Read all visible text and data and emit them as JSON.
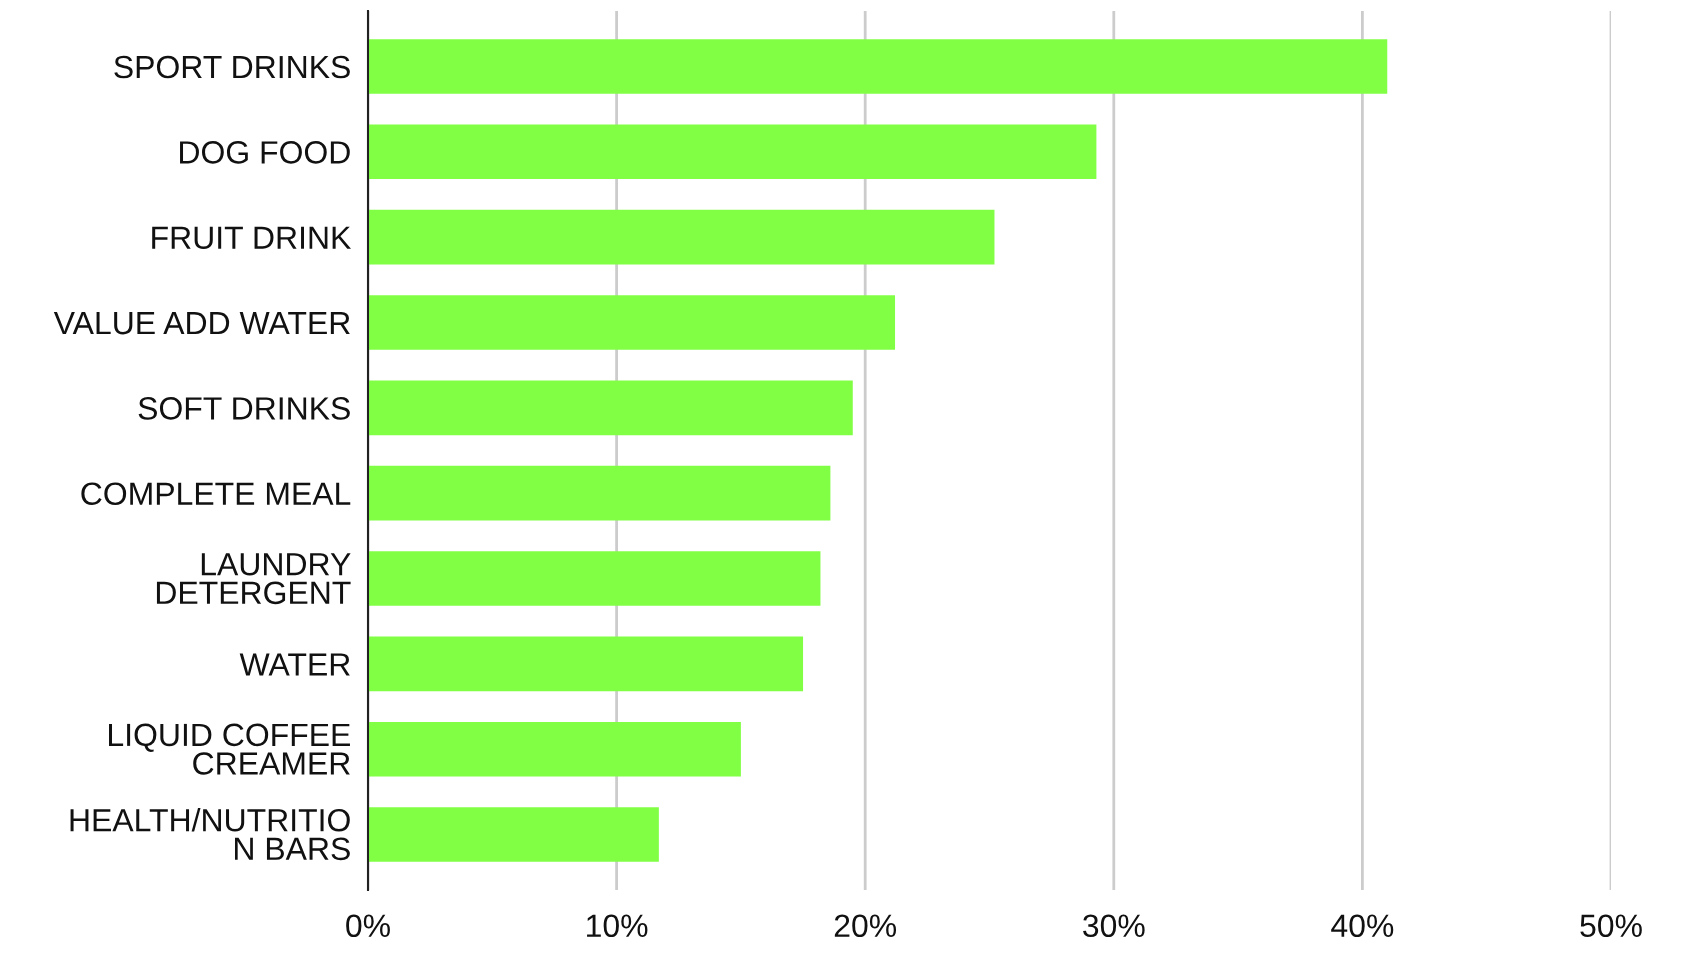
{
  "chart_data": {
    "type": "bar",
    "orientation": "horizontal",
    "categories": [
      "SPORT DRINKS",
      "DOG FOOD",
      "FRUIT DRINK",
      "VALUE ADD WATER",
      "SOFT DRINKS",
      "COMPLETE MEAL",
      "LAUNDRY\nDETERGENT",
      "WATER",
      "LIQUID COFFEE\nCREAMER",
      "HEALTH/NUTRITIO\nN BARS"
    ],
    "values": [
      41.0,
      29.3,
      25.2,
      21.2,
      19.5,
      18.6,
      18.2,
      17.5,
      15.0,
      11.7
    ],
    "color": "#80ff45",
    "xlim": [
      0,
      50
    ],
    "xticks": [
      {
        "value": 0,
        "label": "0%"
      },
      {
        "value": 10,
        "label": "10%"
      },
      {
        "value": 20,
        "label": "20%"
      },
      {
        "value": 30,
        "label": "30%"
      },
      {
        "value": 40,
        "label": "40%"
      },
      {
        "value": 50,
        "label": "50%"
      }
    ],
    "grid": "x",
    "legend": false
  }
}
